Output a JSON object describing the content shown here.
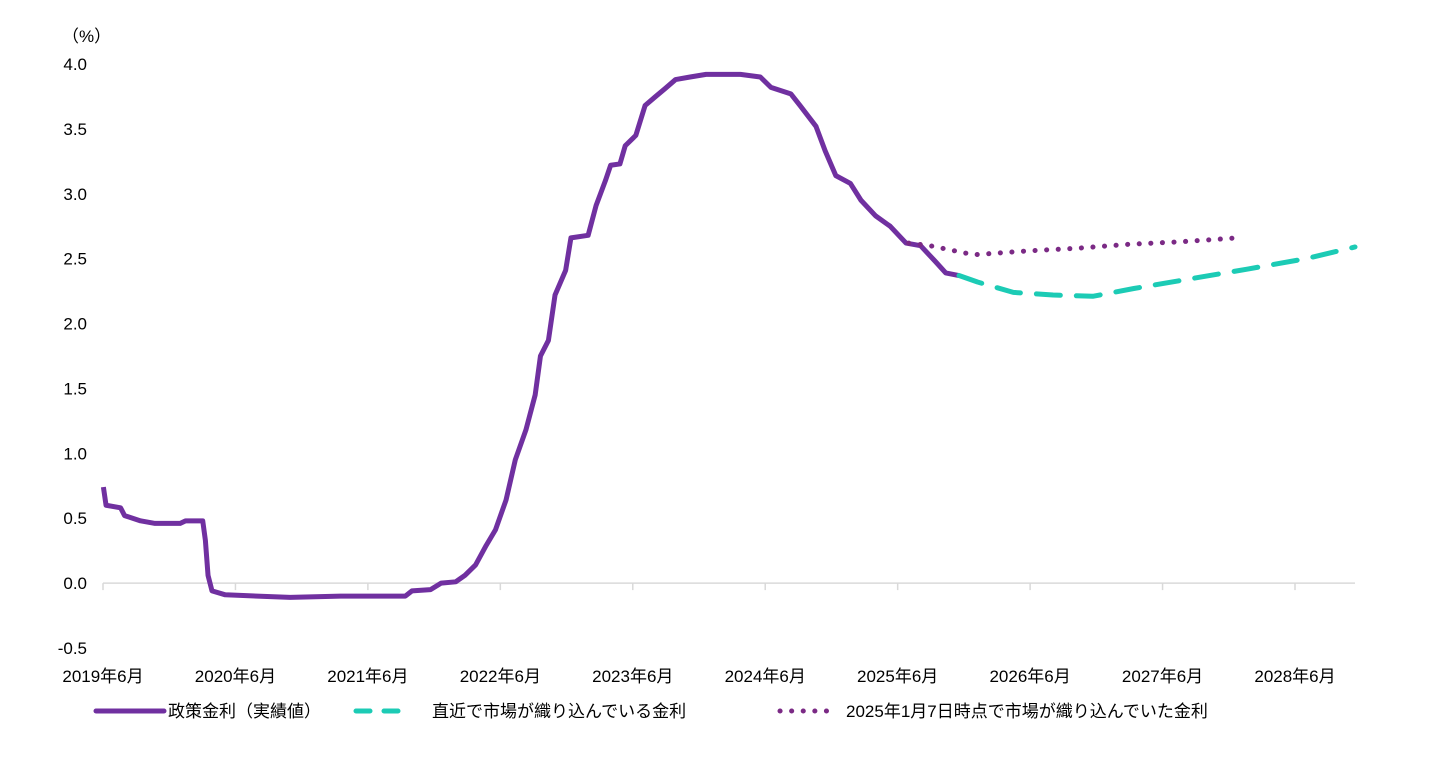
{
  "chart_data": {
    "type": "line",
    "ylabel": "（%）",
    "ylim": [
      -0.5,
      4.0
    ],
    "yticks": [
      "4.0",
      "3.5",
      "3.0",
      "2.5",
      "2.0",
      "1.5",
      "1.0",
      "0.5",
      "0.0",
      "-0.5"
    ],
    "ytick_values": [
      4.0,
      3.5,
      3.0,
      2.5,
      2.0,
      1.5,
      1.0,
      0.5,
      0.0,
      -0.5
    ],
    "xlim": [
      2019.417,
      2028.87
    ],
    "xticks": [
      "2019年6月",
      "2020年6月",
      "2021年6月",
      "2022年6月",
      "2023年6月",
      "2024年6月",
      "2025年6月",
      "2026年6月",
      "2027年6月",
      "2028年6月"
    ],
    "xtick_values": [
      2019.417,
      2020.417,
      2021.417,
      2022.417,
      2023.417,
      2024.417,
      2025.417,
      2026.417,
      2027.417,
      2028.417
    ],
    "grid": false,
    "legend_position": "bottom",
    "series": [
      {
        "name": "政策金利（実績値）",
        "style": "solid",
        "color": "#7030A0",
        "x": [
          2019.42,
          2019.44,
          2019.55,
          2019.58,
          2019.7,
          2019.81,
          2020.0,
          2020.04,
          2020.17,
          2020.19,
          2020.21,
          2020.24,
          2020.34,
          2020.83,
          2021.21,
          2021.7,
          2021.75,
          2021.89,
          2021.97,
          2022.08,
          2022.15,
          2022.23,
          2022.31,
          2022.38,
          2022.46,
          2022.53,
          2022.61,
          2022.68,
          2022.72,
          2022.78,
          2022.83,
          2022.91,
          2022.95,
          2023.08,
          2023.14,
          2023.21,
          2023.25,
          2023.32,
          2023.36,
          2023.44,
          2023.51,
          2023.59,
          2023.66,
          2023.74,
          2023.85,
          2023.97,
          2024.23,
          2024.38,
          2024.46,
          2024.61,
          2024.68,
          2024.8,
          2024.87,
          2024.95,
          2025.06,
          2025.14,
          2025.25,
          2025.36,
          2025.48,
          2025.59,
          2025.7,
          2025.78,
          2025.88
        ],
        "values": [
          0.74,
          0.6,
          0.58,
          0.52,
          0.48,
          0.46,
          0.46,
          0.48,
          0.48,
          0.33,
          0.06,
          -0.06,
          -0.09,
          -0.11,
          -0.1,
          -0.1,
          -0.06,
          -0.05,
          0.0,
          0.01,
          0.06,
          0.14,
          0.29,
          0.41,
          0.64,
          0.95,
          1.18,
          1.45,
          1.75,
          1.87,
          2.22,
          2.41,
          2.66,
          2.68,
          2.91,
          3.1,
          3.22,
          3.23,
          3.37,
          3.45,
          3.68,
          3.75,
          3.81,
          3.88,
          3.9,
          3.92,
          3.92,
          3.9,
          3.82,
          3.77,
          3.68,
          3.52,
          3.33,
          3.14,
          3.08,
          2.95,
          2.83,
          2.75,
          2.62,
          2.6,
          2.48,
          2.39,
          2.37
        ]
      },
      {
        "name": "直近で市場が織り込んでいる金利",
        "style": "dashed",
        "color": "#1CCBB5",
        "x": [
          2025.88,
          2026.02,
          2026.29,
          2026.59,
          2026.89,
          2027.2,
          2027.6,
          2028.06,
          2028.5,
          2028.87
        ],
        "values": [
          2.37,
          2.32,
          2.24,
          2.22,
          2.21,
          2.27,
          2.34,
          2.42,
          2.5,
          2.59
        ]
      },
      {
        "name": "2025年1月7日時点で市場が織り込んでいた金利",
        "style": "dotted",
        "color": "#7B2A85",
        "x": [
          2025.5,
          2025.66,
          2025.99,
          2026.4,
          2026.77,
          2027.15,
          2027.55,
          2027.98
        ],
        "values": [
          2.62,
          2.6,
          2.53,
          2.56,
          2.58,
          2.61,
          2.63,
          2.66
        ]
      }
    ]
  }
}
